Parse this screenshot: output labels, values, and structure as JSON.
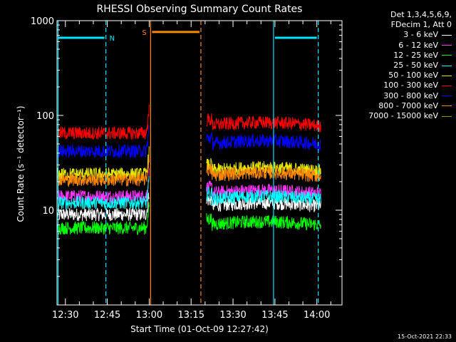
{
  "chart_data": {
    "type": "line",
    "title": "RHESSI Observing Summary Count Rates",
    "xlabel": "Start Time (01-Oct-09 12:27:42)",
    "ylabel": "Count Rate (s⁻¹ detector⁻¹)",
    "yscale": "log",
    "ylim": [
      1,
      1000
    ],
    "y_ticks": [
      {
        "value": 10,
        "label": "10"
      },
      {
        "value": 100,
        "label": "100"
      },
      {
        "value": 1000,
        "label": "1000"
      }
    ],
    "xlim_minutes": [
      747.0,
      849.0
    ],
    "x_ticks": [
      {
        "minute": 750,
        "label": "12:30"
      },
      {
        "minute": 765,
        "label": "12:45"
      },
      {
        "minute": 780,
        "label": "13:00"
      },
      {
        "minute": 795,
        "label": "13:15"
      },
      {
        "minute": 810,
        "label": "13:30"
      },
      {
        "minute": 825,
        "label": "13:45"
      },
      {
        "minute": 840,
        "label": "14:00"
      }
    ],
    "legend_header": [
      "Det 1,3,4,5,6,9,",
      "FDecim 1, Att 0"
    ],
    "legend_position": "right",
    "data_gap_minutes": [
      780.0,
      800.5
    ],
    "series": [
      {
        "name": "3 - 6 keV",
        "color": "#ffffff",
        "before": 9,
        "after": 11
      },
      {
        "name": "6 - 12 keV",
        "color": "#ff33ff",
        "before": 14,
        "after": 15
      },
      {
        "name": "12 - 25 keV",
        "color": "#00ff00",
        "before": 6.5,
        "after": 7
      },
      {
        "name": "25 - 50 keV",
        "color": "#00ffff",
        "before": 12,
        "after": 13
      },
      {
        "name": "50 - 100 keV",
        "color": "#e6e600",
        "before": 24,
        "after": 26
      },
      {
        "name": "100 - 300 keV",
        "color": "#ff0000",
        "before": 65,
        "after": 78
      },
      {
        "name": "300 - 800 keV",
        "color": "#0000ff",
        "before": 42,
        "after": 50
      },
      {
        "name": "800 - 7000 keV",
        "color": "#ff8800",
        "before": 21,
        "after": 23
      },
      {
        "name": "7000 - 15000 keV",
        "color": "#999900",
        "before": null,
        "after": null
      }
    ],
    "flag_bars": [
      {
        "label": "N",
        "color": "#00e5ff",
        "start_minute": 747.0,
        "end_minute": 764.5,
        "flag_y": 660
      },
      {
        "label": "",
        "color": "#00e5ff",
        "start_minute": 824.5,
        "end_minute": 840.5,
        "flag_y": 660
      },
      {
        "label": "S",
        "color": "#ff8800",
        "start_minute": 780.5,
        "end_minute": 798.5,
        "flag_y": 760
      }
    ],
    "vertical_lines": [
      {
        "minute": 747.4,
        "color": "#00e5ff",
        "style": "solid"
      },
      {
        "minute": 764.5,
        "color": "#00e5ff",
        "style": "dashed"
      },
      {
        "minute": 780.5,
        "color": "#ff8800",
        "style": "solid"
      },
      {
        "minute": 798.5,
        "color": "#ff8800",
        "style": "dashed"
      },
      {
        "minute": 824.5,
        "color": "#00e5ff",
        "style": "solid"
      },
      {
        "minute": 840.5,
        "color": "#00e5ff",
        "style": "dashed"
      }
    ],
    "grid": false
  },
  "footer": {
    "timestamp": "15-Oct-2021 22:33"
  }
}
